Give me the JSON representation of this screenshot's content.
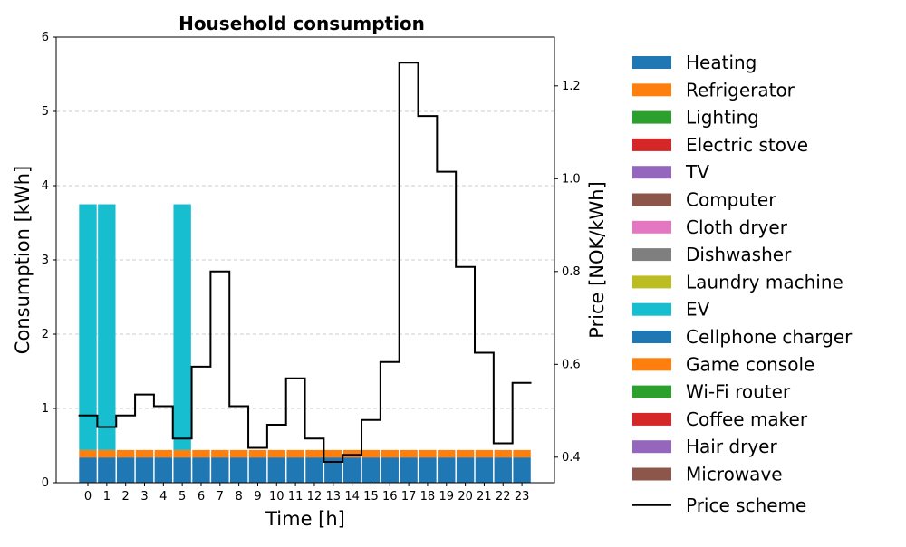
{
  "chart_data": {
    "type": "bar",
    "title": "Household consumption",
    "xlabel": "Time [h]",
    "ylabel": "Consumption [kWh]",
    "y2label": "Price [NOK/kWh]",
    "ylim": [
      0,
      6
    ],
    "y2lim": [
      0.345,
      1.305
    ],
    "yticks": [
      "0",
      "1",
      "2",
      "3",
      "4",
      "5",
      "6"
    ],
    "y2ticks": [
      "0.4",
      "0.6",
      "0.8",
      "1.0",
      "1.2"
    ],
    "y2tick_values": [
      0.4,
      0.6,
      0.8,
      1.0,
      1.2
    ],
    "categories": [
      "0",
      "1",
      "2",
      "3",
      "4",
      "5",
      "6",
      "7",
      "8",
      "9",
      "10",
      "11",
      "12",
      "13",
      "14",
      "15",
      "16",
      "17",
      "18",
      "19",
      "20",
      "21",
      "22",
      "23"
    ],
    "grid": true,
    "stacked": true,
    "legend_position": "right",
    "series": [
      {
        "name": "Heating",
        "color": "#1f77b4",
        "values": [
          0.34,
          0.34,
          0.34,
          0.34,
          0.34,
          0.34,
          0.34,
          0.34,
          0.34,
          0.34,
          0.34,
          0.34,
          0.34,
          0.34,
          0.34,
          0.34,
          0.34,
          0.34,
          0.34,
          0.34,
          0.34,
          0.34,
          0.34,
          0.34
        ]
      },
      {
        "name": "Refrigerator",
        "color": "#ff7f0e",
        "values": [
          0.1,
          0.1,
          0.1,
          0.1,
          0.1,
          0.1,
          0.1,
          0.1,
          0.1,
          0.1,
          0.1,
          0.1,
          0.1,
          0.1,
          0.1,
          0.1,
          0.1,
          0.1,
          0.1,
          0.1,
          0.1,
          0.1,
          0.1,
          0.1
        ]
      },
      {
        "name": "Lighting",
        "color": "#2ca02c",
        "values": [
          0,
          0,
          0,
          0,
          0,
          0,
          0,
          0,
          0,
          0,
          0,
          0,
          0,
          0,
          0,
          0,
          0,
          0,
          0,
          0,
          0,
          0,
          0,
          0
        ]
      },
      {
        "name": "Electric stove",
        "color": "#d62728",
        "values": [
          0,
          0,
          0,
          0,
          0,
          0,
          0,
          0,
          0,
          0,
          0,
          0,
          0,
          0,
          0,
          0,
          0,
          0,
          0,
          0,
          0,
          0,
          0,
          0
        ]
      },
      {
        "name": "TV",
        "color": "#9467bd",
        "values": [
          0,
          0,
          0,
          0,
          0,
          0,
          0,
          0,
          0,
          0,
          0,
          0,
          0,
          0,
          0,
          0,
          0,
          0,
          0,
          0,
          0,
          0,
          0,
          0
        ]
      },
      {
        "name": "Computer",
        "color": "#8c564b",
        "values": [
          0,
          0,
          0,
          0,
          0,
          0,
          0,
          0,
          0,
          0,
          0,
          0,
          0,
          0,
          0,
          0,
          0,
          0,
          0,
          0,
          0,
          0,
          0,
          0
        ]
      },
      {
        "name": "Cloth dryer",
        "color": "#e377c2",
        "values": [
          0,
          0,
          0,
          0,
          0,
          0,
          0,
          0,
          0,
          0,
          0,
          0,
          0,
          0,
          0,
          0,
          0,
          0,
          0,
          0,
          0,
          0,
          0,
          0
        ]
      },
      {
        "name": "Dishwasher",
        "color": "#7f7f7f",
        "values": [
          0,
          0,
          0,
          0,
          0,
          0,
          0,
          0,
          0,
          0,
          0,
          0,
          0,
          0,
          0,
          0,
          0,
          0,
          0,
          0,
          0,
          0,
          0,
          0
        ]
      },
      {
        "name": "Laundry machine",
        "color": "#bcbd22",
        "values": [
          0,
          0,
          0,
          0,
          0,
          0,
          0,
          0,
          0,
          0,
          0,
          0,
          0,
          0,
          0,
          0,
          0,
          0,
          0,
          0,
          0,
          0,
          0,
          0
        ]
      },
      {
        "name": "EV",
        "color": "#17becf",
        "values": [
          3.31,
          3.31,
          0,
          0,
          0,
          3.31,
          0,
          0,
          0,
          0,
          0,
          0,
          0,
          0,
          0,
          0,
          0,
          0,
          0,
          0,
          0,
          0,
          0,
          0
        ]
      },
      {
        "name": "Cellphone charger",
        "color": "#1f77b4",
        "values": [
          0,
          0,
          0,
          0,
          0,
          0,
          0,
          0,
          0,
          0,
          0,
          0,
          0,
          0,
          0,
          0,
          0,
          0,
          0,
          0,
          0,
          0,
          0,
          0
        ]
      },
      {
        "name": "Game console",
        "color": "#ff7f0e",
        "values": [
          0,
          0,
          0,
          0,
          0,
          0,
          0,
          0,
          0,
          0,
          0,
          0,
          0,
          0,
          0,
          0,
          0,
          0,
          0,
          0,
          0,
          0,
          0,
          0
        ]
      },
      {
        "name": "Wi-Fi router",
        "color": "#2ca02c",
        "values": [
          0,
          0,
          0,
          0,
          0,
          0,
          0,
          0,
          0,
          0,
          0,
          0,
          0,
          0,
          0,
          0,
          0,
          0,
          0,
          0,
          0,
          0,
          0,
          0
        ]
      },
      {
        "name": "Coffee maker",
        "color": "#d62728",
        "values": [
          0,
          0,
          0,
          0,
          0,
          0,
          0,
          0,
          0,
          0,
          0,
          0,
          0,
          0,
          0,
          0,
          0,
          0,
          0,
          0,
          0,
          0,
          0,
          0
        ]
      },
      {
        "name": "Hair dryer",
        "color": "#9467bd",
        "values": [
          0,
          0,
          0,
          0,
          0,
          0,
          0,
          0,
          0,
          0,
          0,
          0,
          0,
          0,
          0,
          0,
          0,
          0,
          0,
          0,
          0,
          0,
          0,
          0
        ]
      },
      {
        "name": "Microwave",
        "color": "#8c564b",
        "values": [
          0,
          0,
          0,
          0,
          0,
          0,
          0,
          0,
          0,
          0,
          0,
          0,
          0,
          0,
          0,
          0,
          0,
          0,
          0,
          0,
          0,
          0,
          0,
          0
        ]
      }
    ],
    "line_series": {
      "name": "Price scheme",
      "color": "#000000",
      "values": [
        0.49,
        0.465,
        0.49,
        0.535,
        0.51,
        0.44,
        0.595,
        0.8,
        0.51,
        0.42,
        0.47,
        0.57,
        0.44,
        0.39,
        0.405,
        0.48,
        0.605,
        1.25,
        1.135,
        1.015,
        0.81,
        0.625,
        0.43,
        0.56
      ]
    }
  }
}
